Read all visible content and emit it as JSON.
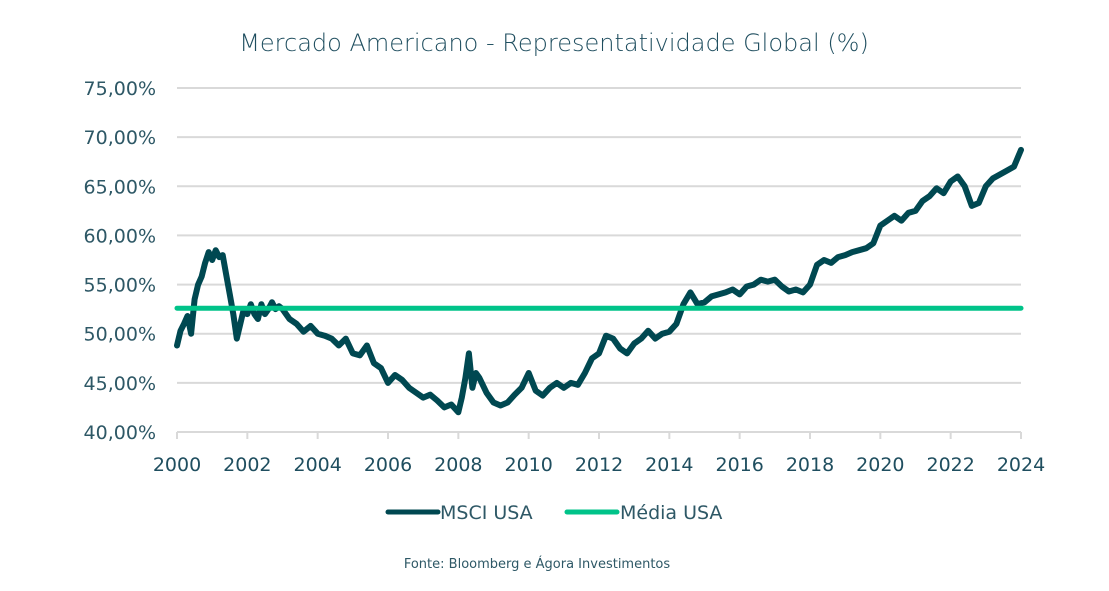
{
  "chart_data": {
    "type": "line",
    "title": "Mercado Americano - Representatividade Global (%)",
    "xlabel": "",
    "ylabel": "",
    "xlim": [
      2000,
      2024
    ],
    "ylim": [
      40,
      75
    ],
    "grid": true,
    "x_ticks": [
      "2000",
      "2002",
      "2004",
      "2006",
      "2008",
      "2010",
      "2012",
      "2014",
      "2016",
      "2018",
      "2020",
      "2022",
      "2024"
    ],
    "x_tick_values": [
      2000,
      2002,
      2004,
      2006,
      2008,
      2010,
      2012,
      2014,
      2016,
      2018,
      2020,
      2022,
      2024
    ],
    "y_ticks": [
      "40,00%",
      "45,00%",
      "50,00%",
      "55,00%",
      "60,00%",
      "65,00%",
      "70,00%",
      "75,00%"
    ],
    "y_tick_values": [
      40,
      45,
      50,
      55,
      60,
      65,
      70,
      75
    ],
    "legend_position": "bottom",
    "series": [
      {
        "name": "MSCI USA",
        "color": "#004851",
        "x": [
          2000.0,
          2000.1,
          2000.2,
          2000.3,
          2000.4,
          2000.5,
          2000.6,
          2000.7,
          2000.8,
          2000.9,
          2001.0,
          2001.1,
          2001.2,
          2001.3,
          2001.4,
          2001.5,
          2001.6,
          2001.7,
          2001.8,
          2001.9,
          2002.0,
          2002.1,
          2002.2,
          2002.3,
          2002.4,
          2002.5,
          2002.6,
          2002.7,
          2002.8,
          2002.9,
          2003.0,
          2003.2,
          2003.4,
          2003.6,
          2003.8,
          2004.0,
          2004.2,
          2004.4,
          2004.6,
          2004.8,
          2005.0,
          2005.2,
          2005.4,
          2005.6,
          2005.8,
          2006.0,
          2006.2,
          2006.4,
          2006.6,
          2006.8,
          2007.0,
          2007.2,
          2007.4,
          2007.6,
          2007.8,
          2008.0,
          2008.1,
          2008.2,
          2008.3,
          2008.4,
          2008.5,
          2008.6,
          2008.8,
          2009.0,
          2009.2,
          2009.4,
          2009.6,
          2009.8,
          2010.0,
          2010.2,
          2010.4,
          2010.6,
          2010.8,
          2011.0,
          2011.2,
          2011.4,
          2011.6,
          2011.8,
          2012.0,
          2012.2,
          2012.4,
          2012.6,
          2012.8,
          2013.0,
          2013.2,
          2013.4,
          2013.6,
          2013.8,
          2014.0,
          2014.2,
          2014.4,
          2014.6,
          2014.8,
          2015.0,
          2015.2,
          2015.4,
          2015.6,
          2015.8,
          2016.0,
          2016.2,
          2016.4,
          2016.6,
          2016.8,
          2017.0,
          2017.2,
          2017.4,
          2017.6,
          2017.8,
          2018.0,
          2018.2,
          2018.4,
          2018.6,
          2018.8,
          2019.0,
          2019.2,
          2019.4,
          2019.6,
          2019.8,
          2020.0,
          2020.2,
          2020.4,
          2020.6,
          2020.8,
          2021.0,
          2021.2,
          2021.4,
          2021.6,
          2021.8,
          2022.0,
          2022.2,
          2022.4,
          2022.6,
          2022.8,
          2023.0,
          2023.2,
          2023.4,
          2023.6,
          2023.8,
          2024.0
        ],
        "values": [
          48.8,
          50.3,
          51.0,
          51.8,
          50.0,
          53.5,
          55.0,
          55.8,
          57.2,
          58.3,
          57.5,
          58.5,
          57.8,
          58.0,
          56.0,
          54.0,
          52.0,
          49.5,
          51.0,
          52.5,
          52.0,
          53.0,
          52.0,
          51.5,
          53.0,
          52.0,
          52.5,
          53.2,
          52.5,
          52.8,
          52.5,
          51.5,
          51.0,
          50.2,
          50.8,
          50.0,
          49.8,
          49.5,
          48.8,
          49.5,
          48.0,
          47.8,
          48.8,
          47.0,
          46.5,
          45.0,
          45.8,
          45.3,
          44.5,
          44.0,
          43.5,
          43.8,
          43.2,
          42.5,
          42.8,
          42.0,
          43.5,
          45.5,
          48.0,
          44.5,
          46.0,
          45.5,
          44.0,
          43.0,
          42.7,
          43.0,
          43.8,
          44.5,
          46.0,
          44.2,
          43.7,
          44.5,
          45.0,
          44.5,
          45.0,
          44.8,
          46.0,
          47.5,
          48.0,
          49.8,
          49.5,
          48.5,
          48.0,
          49.0,
          49.5,
          50.3,
          49.5,
          50.0,
          50.2,
          51.0,
          53.0,
          54.2,
          53.0,
          53.2,
          53.8,
          54.0,
          54.2,
          54.5,
          54.0,
          54.8,
          55.0,
          55.5,
          55.3,
          55.5,
          54.8,
          54.3,
          54.5,
          54.2,
          55.0,
          57.0,
          57.5,
          57.2,
          57.8,
          58.0,
          58.3,
          58.5,
          58.7,
          59.2,
          61.0,
          61.5,
          62.0,
          61.5,
          62.3,
          62.5,
          63.5,
          64.0,
          64.8,
          64.3,
          65.5,
          66.0,
          65.0,
          63.0,
          63.3,
          65.0,
          65.8,
          66.2,
          66.6,
          67.0,
          68.7
        ]
      },
      {
        "name": "Média USA",
        "color": "#00c389",
        "x": [
          2000,
          2024
        ],
        "values": [
          52.6,
          52.6
        ]
      }
    ]
  },
  "source": "Fonte:  Bloomberg e Ágora Investimentos"
}
